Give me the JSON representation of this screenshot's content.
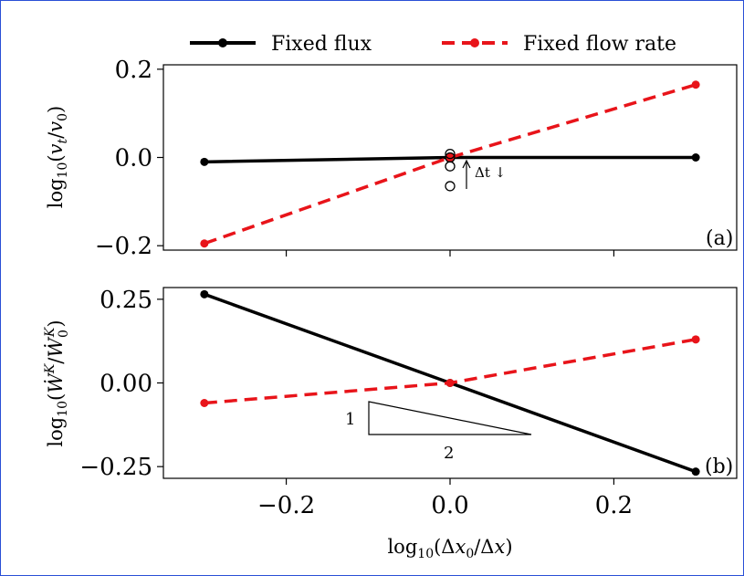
{
  "legend": {
    "fixed_flux": "Fixed flux",
    "fixed_flow_rate": "Fixed flow rate"
  },
  "colors": {
    "fixed_flux": "#000000",
    "fixed_flow_rate": "#e8141a",
    "frame": "#2a4fd6"
  },
  "chart_data": [
    {
      "type": "line",
      "panel_label": "(a)",
      "ylabel": "log10(vt/v0)",
      "xlabel": "",
      "xlim": [
        -0.35,
        0.35
      ],
      "ylim": [
        -0.21,
        0.21
      ],
      "yticks": [
        -0.2,
        0.0,
        0.2
      ],
      "ytick_labels": [
        "−0.2",
        "0.0",
        "0.2"
      ],
      "legend_position": "top",
      "series": [
        {
          "name": "Fixed flux",
          "x": [
            -0.3,
            0.0,
            0.3
          ],
          "y": [
            -0.01,
            0.0,
            0.0
          ]
        },
        {
          "name": "Fixed flow rate",
          "x": [
            -0.3,
            0.0,
            0.3
          ],
          "y": [
            -0.195,
            0.0,
            0.165
          ]
        }
      ],
      "open_markers": {
        "x": [
          0.0,
          0.0,
          0.0,
          0.0
        ],
        "y": [
          0.008,
          0.0,
          -0.02,
          -0.065
        ]
      },
      "annotation": "Δt ↓"
    },
    {
      "type": "line",
      "panel_label": "(b)",
      "ylabel": "log10(Ẇ^K/Ẇ0^K)",
      "xlabel": "log10(Δx0/Δx)",
      "xlim": [
        -0.35,
        0.35
      ],
      "ylim": [
        -0.285,
        0.285
      ],
      "yticks": [
        -0.25,
        0.0,
        0.25
      ],
      "ytick_labels": [
        "−0.25",
        "0.00",
        "0.25"
      ],
      "xticks": [
        -0.2,
        0.0,
        0.2
      ],
      "xtick_labels": [
        "−0.2",
        "0.0",
        "0.2"
      ],
      "series": [
        {
          "name": "Fixed flux",
          "x": [
            -0.3,
            0.0,
            0.3
          ],
          "y": [
            0.265,
            0.0,
            -0.265
          ]
        },
        {
          "name": "Fixed flow rate",
          "x": [
            -0.3,
            0.0,
            0.3
          ],
          "y": [
            -0.06,
            0.0,
            0.13
          ]
        }
      ],
      "slope_triangle": {
        "rise_label": "1",
        "run_label": "2"
      }
    }
  ]
}
